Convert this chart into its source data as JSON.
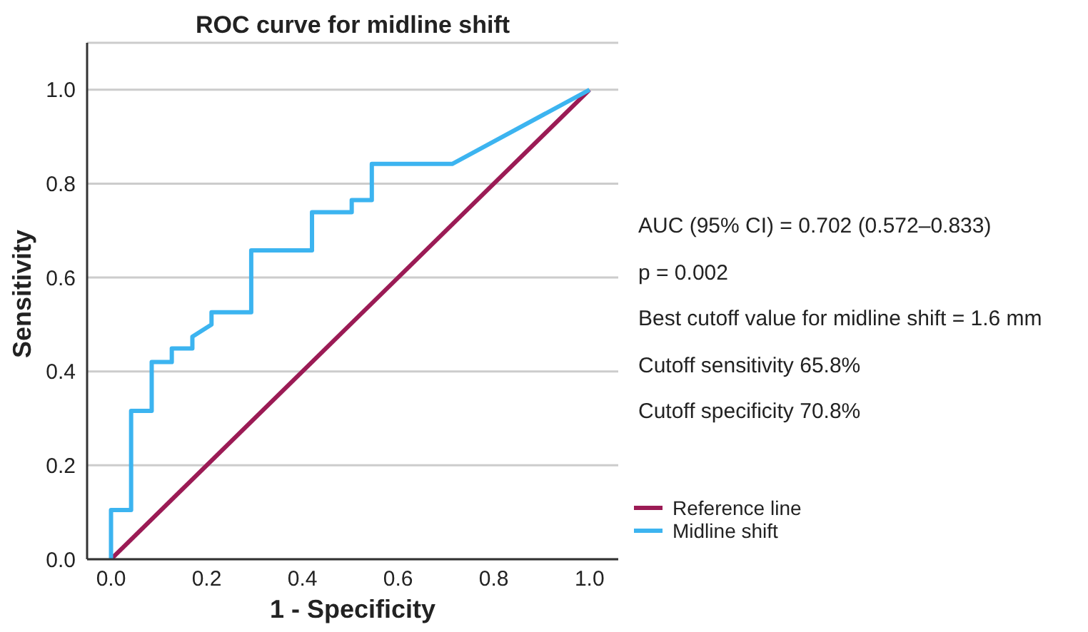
{
  "chart_data": {
    "type": "line",
    "title": "ROC curve for midline shift",
    "xlabel": "1 - Specificity",
    "ylabel": "Sensitivity",
    "series": [
      {
        "name": "Reference line",
        "color": "#9b1b55",
        "x": [
          0,
          1
        ],
        "values": [
          0,
          1
        ]
      },
      {
        "name": "Midline shift",
        "color": "#3cb4f0",
        "x": [
          0,
          0,
          0.042,
          0.042,
          0.085,
          0.085,
          0.127,
          0.127,
          0.17,
          0.17,
          0.21,
          0.21,
          0.293,
          0.293,
          0.42,
          0.42,
          0.503,
          0.503,
          0.545,
          0.545,
          0.713,
          1
        ],
        "values": [
          0,
          0.105,
          0.105,
          0.316,
          0.316,
          0.42,
          0.42,
          0.449,
          0.449,
          0.474,
          0.5,
          0.526,
          0.526,
          0.658,
          0.658,
          0.739,
          0.739,
          0.765,
          0.765,
          0.842,
          0.842,
          1
        ]
      }
    ],
    "xlim": [
      -0.05,
      1.06
    ],
    "ylim": [
      0,
      1.1
    ],
    "xticks": [
      {
        "value": 0,
        "label": "0.0"
      },
      {
        "value": 0.2,
        "label": "0.2"
      },
      {
        "value": 0.4,
        "label": "0.4"
      },
      {
        "value": 0.6,
        "label": "0.6"
      },
      {
        "value": 0.8,
        "label": "0.8"
      },
      {
        "value": 1,
        "label": "1.0"
      }
    ],
    "yticks": [
      {
        "value": 0,
        "label": "0.0"
      },
      {
        "value": 0.2,
        "label": "0.2"
      },
      {
        "value": 0.4,
        "label": "0.4"
      },
      {
        "value": 0.6,
        "label": "0.6"
      },
      {
        "value": 0.8,
        "label": "0.8"
      },
      {
        "value": 1,
        "label": "1.0"
      }
    ],
    "grid": "y",
    "legend": "right",
    "marker": "none",
    "line_style": "solid",
    "annotations": [
      "AUC (95% CI) = 0.702 (0.572–0.833)",
      "p = 0.002",
      "Best cutoff value for midline shift = 1.6 mm",
      "Cutoff sensitivity 65.8%",
      "Cutoff specificity 70.8%"
    ]
  }
}
